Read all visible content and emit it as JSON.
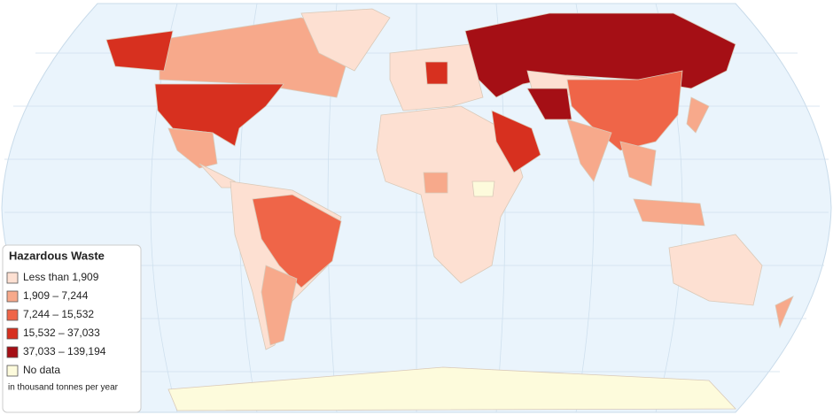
{
  "legend": {
    "title": "Hazardous Waste",
    "items": [
      {
        "label": "Less than 1,909",
        "color": "#fde0d2"
      },
      {
        "label": "1,909 – 7,244",
        "color": "#f7a98b"
      },
      {
        "label": "7,244 – 15,532",
        "color": "#ef6548"
      },
      {
        "label": "15,532 – 37,033",
        "color": "#d7301f"
      },
      {
        "label": "37,033 – 139,194",
        "color": "#a50f15"
      },
      {
        "label": "No data",
        "color": "#fdfbdc"
      }
    ],
    "note": "in thousand tonnes per year"
  }
}
